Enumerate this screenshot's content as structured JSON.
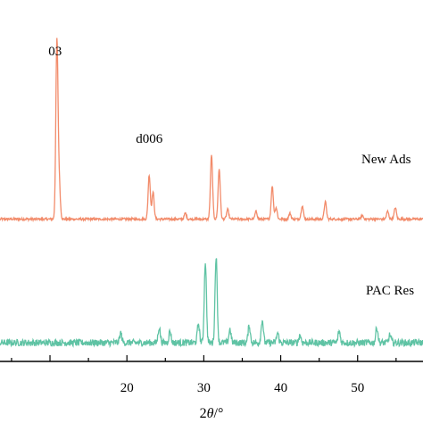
{
  "chart_data": {
    "type": "line",
    "xlabel_prefix": "2",
    "xlabel_symbol": "θ",
    "xlabel_suffix": "/°",
    "ylabel": "",
    "xlim": [
      3.5,
      58.5
    ],
    "x_ticks": [
      20,
      30,
      40,
      50
    ],
    "grid": false,
    "series": [
      {
        "name": "New Ads",
        "color": "#f28b6a",
        "offset": 0.6,
        "baseline": 0.1,
        "peaks": [
          {
            "x": 10.9,
            "h": 0.92
          },
          {
            "x": 11.2,
            "h": 0.18
          },
          {
            "x": 22.9,
            "h": 0.23
          },
          {
            "x": 23.4,
            "h": 0.14
          },
          {
            "x": 27.6,
            "h": 0.03
          },
          {
            "x": 31.0,
            "h": 0.33
          },
          {
            "x": 32.0,
            "h": 0.26
          },
          {
            "x": 33.1,
            "h": 0.05
          },
          {
            "x": 36.8,
            "h": 0.04
          },
          {
            "x": 38.9,
            "h": 0.17
          },
          {
            "x": 39.4,
            "h": 0.06
          },
          {
            "x": 41.2,
            "h": 0.03
          },
          {
            "x": 42.8,
            "h": 0.07
          },
          {
            "x": 45.8,
            "h": 0.09
          },
          {
            "x": 50.6,
            "h": 0.02
          },
          {
            "x": 53.9,
            "h": 0.04
          },
          {
            "x": 54.9,
            "h": 0.06
          }
        ]
      },
      {
        "name": "PAC Res",
        "color": "#5fc3a4",
        "offset": 0.0,
        "baseline": 0.06,
        "peaks": [
          {
            "x": 19.2,
            "h": 0.05
          },
          {
            "x": 24.2,
            "h": 0.08
          },
          {
            "x": 25.6,
            "h": 0.06
          },
          {
            "x": 29.3,
            "h": 0.1
          },
          {
            "x": 30.2,
            "h": 0.42
          },
          {
            "x": 31.6,
            "h": 0.45
          },
          {
            "x": 33.4,
            "h": 0.07
          },
          {
            "x": 35.9,
            "h": 0.09
          },
          {
            "x": 37.6,
            "h": 0.12
          },
          {
            "x": 39.6,
            "h": 0.05
          },
          {
            "x": 42.5,
            "h": 0.04
          },
          {
            "x": 47.6,
            "h": 0.06
          },
          {
            "x": 52.5,
            "h": 0.08
          },
          {
            "x": 54.2,
            "h": 0.04
          }
        ]
      }
    ],
    "annotations": [
      {
        "text": "03",
        "x": 10.9
      },
      {
        "text": "d006",
        "x": 22.9
      }
    ]
  }
}
